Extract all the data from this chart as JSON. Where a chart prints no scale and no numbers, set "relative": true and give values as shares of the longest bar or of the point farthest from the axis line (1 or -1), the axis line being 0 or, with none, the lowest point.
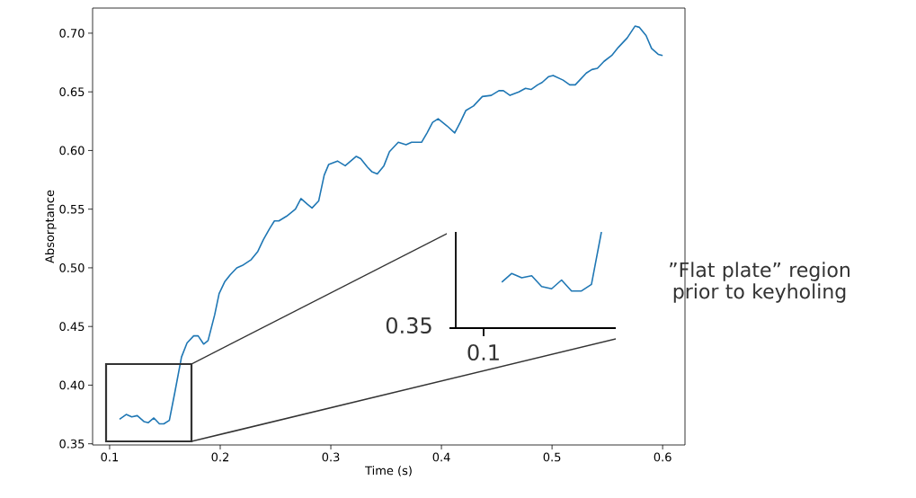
{
  "chart_data": [
    {
      "type": "line",
      "xlabel": "Time (s)",
      "ylabel": "Absorptance",
      "xlim": [
        0.0846,
        0.6202
      ],
      "ylim": [
        0.349,
        0.7214
      ],
      "xticks": [
        0.1,
        0.2,
        0.3,
        0.4,
        0.5,
        0.6
      ],
      "yticks": [
        {
          "value": 0.35,
          "label": "0.35"
        },
        {
          "value": 0.4,
          "label": "0.40"
        },
        {
          "value": 0.45,
          "label": "0.45"
        },
        {
          "value": 0.5,
          "label": "0.50"
        },
        {
          "value": 0.55,
          "label": "0.55"
        },
        {
          "value": 0.6,
          "label": "0.60"
        },
        {
          "value": 0.65,
          "label": "0.65"
        },
        {
          "value": 0.7,
          "label": "0.70"
        }
      ],
      "series": [
        {
          "color": "#1f77b4",
          "x": [
            0.109,
            0.115,
            0.12,
            0.125,
            0.131,
            0.135,
            0.14,
            0.145,
            0.149,
            0.154,
            0.159,
            0.165,
            0.17,
            0.176,
            0.18,
            0.185,
            0.189,
            0.195,
            0.199,
            0.204,
            0.209,
            0.215,
            0.22,
            0.228,
            0.234,
            0.239,
            0.245,
            0.249,
            0.253,
            0.26,
            0.268,
            0.273,
            0.279,
            0.283,
            0.289,
            0.294,
            0.298,
            0.306,
            0.313,
            0.323,
            0.327,
            0.333,
            0.337,
            0.342,
            0.348,
            0.353,
            0.361,
            0.368,
            0.373,
            0.382,
            0.387,
            0.392,
            0.397,
            0.405,
            0.412,
            0.417,
            0.422,
            0.429,
            0.437,
            0.445,
            0.452,
            0.456,
            0.462,
            0.47,
            0.476,
            0.481,
            0.487,
            0.491,
            0.497,
            0.501,
            0.51,
            0.516,
            0.521,
            0.525,
            0.531,
            0.536,
            0.541,
            0.547,
            0.554,
            0.56,
            0.568,
            0.575,
            0.579,
            0.585,
            0.59,
            0.596,
            0.6
          ],
          "values": [
            0.371,
            0.375,
            0.373,
            0.374,
            0.369,
            0.368,
            0.372,
            0.367,
            0.367,
            0.37,
            0.394,
            0.424,
            0.436,
            0.442,
            0.442,
            0.435,
            0.438,
            0.46,
            0.478,
            0.488,
            0.494,
            0.5,
            0.502,
            0.507,
            0.514,
            0.524,
            0.534,
            0.54,
            0.54,
            0.544,
            0.55,
            0.559,
            0.554,
            0.551,
            0.557,
            0.579,
            0.588,
            0.591,
            0.587,
            0.595,
            0.593,
            0.586,
            0.582,
            0.58,
            0.587,
            0.599,
            0.607,
            0.605,
            0.607,
            0.607,
            0.615,
            0.624,
            0.627,
            0.621,
            0.615,
            0.624,
            0.634,
            0.638,
            0.646,
            0.647,
            0.651,
            0.651,
            0.647,
            0.65,
            0.653,
            0.652,
            0.656,
            0.658,
            0.663,
            0.664,
            0.66,
            0.656,
            0.656,
            0.66,
            0.666,
            0.669,
            0.67,
            0.676,
            0.681,
            0.688,
            0.696,
            0.706,
            0.705,
            0.698,
            0.687,
            0.682,
            0.681
          ]
        }
      ]
    },
    {
      "type": "line",
      "relative": true,
      "categories": [
        null,
        null,
        null,
        null,
        null,
        null,
        null,
        null,
        null,
        null,
        null
      ],
      "annotations": [
        "0.1",
        "0.35",
        "”Flat plate” region prior to keyholing"
      ],
      "series": [
        {
          "color": "#1f77b4",
          "values": [
            0.477,
            0.568,
            0.523,
            0.545,
            0.432,
            0.409,
            0.5,
            0.386,
            0.386,
            0.455,
            1
          ]
        }
      ]
    }
  ]
}
